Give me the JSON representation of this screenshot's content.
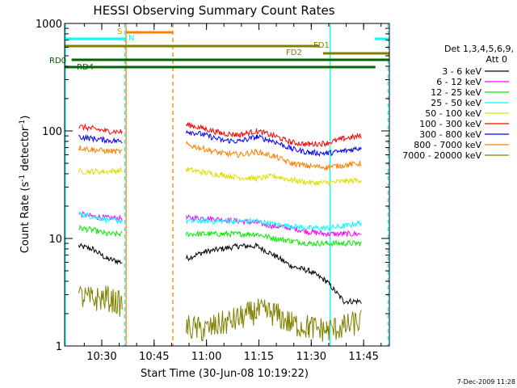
{
  "chart_data": {
    "type": "line",
    "title": "HESSI Observing Summary Count Rates",
    "xlabel": "Start Time (30-Jun-08 10:19:22)",
    "ylabel_main": "Count Rate (s",
    "ylabel_sup1": "-1",
    "ylabel_mid": " detector",
    "ylabel_sup2": "-1",
    "ylabel_end": ")",
    "yscale": "log",
    "ylim": [
      1,
      1000
    ],
    "xlim_minutes": [
      0,
      93
    ],
    "x_ticks": [
      {
        "label": "10:30",
        "t": 10.63
      },
      {
        "label": "10:45",
        "t": 25.63
      },
      {
        "label": "11:00",
        "t": 40.63
      },
      {
        "label": "11:15",
        "t": 55.63
      },
      {
        "label": "11:30",
        "t": 70.63
      },
      {
        "label": "11:45",
        "t": 85.63
      }
    ],
    "y_ticks": [
      {
        "label": "1",
        "v": 1
      },
      {
        "label": "10",
        "v": 10
      },
      {
        "label": "100",
        "v": 100
      },
      {
        "label": "1000",
        "v": 1000
      }
    ],
    "legend_header": [
      "Det 1,3,4,5,6,9,",
      "Att 0"
    ],
    "series": [
      {
        "name": "3 - 6 keV",
        "color": "#000000",
        "t": [
          0,
          4,
          8,
          12,
          16.5,
          34.8,
          40,
          45,
          50,
          55,
          60,
          65,
          70,
          75,
          80,
          85,
          88.5,
          93
        ],
        "v": [
          null,
          8.5,
          8,
          6.5,
          6,
          6.5,
          7.5,
          8,
          8.5,
          8.5,
          7,
          5.5,
          5,
          4,
          2.6,
          2.6,
          null,
          null
        ]
      },
      {
        "name": "6 - 12 keV",
        "color": "#ff00ff",
        "t": [
          0,
          4,
          8,
          12,
          16.5,
          34.8,
          40,
          45,
          50,
          55,
          60,
          65,
          70,
          75,
          80,
          85,
          88.5,
          93
        ],
        "v": [
          null,
          17,
          16,
          15.5,
          15.5,
          15.5,
          15.5,
          15,
          14.5,
          14,
          13,
          12.5,
          11.5,
          11,
          11,
          11,
          null,
          null
        ]
      },
      {
        "name": "12 - 25 keV",
        "color": "#00ee00",
        "t": [
          0,
          4,
          8,
          12,
          16.5,
          34.8,
          40,
          45,
          50,
          55,
          60,
          65,
          70,
          75,
          80,
          85,
          88.5,
          93
        ],
        "v": [
          null,
          12.5,
          12,
          11,
          11,
          11,
          11,
          11,
          11,
          11,
          10,
          9.5,
          9,
          9,
          9,
          9,
          null,
          null
        ]
      },
      {
        "name": "25 - 50 keV",
        "color": "#00ffff",
        "t": [
          0,
          4,
          8,
          12,
          16.5,
          34.8,
          40,
          45,
          50,
          55,
          60,
          65,
          70,
          75,
          80,
          85,
          88.5,
          93
        ],
        "v": [
          null,
          17,
          16,
          15,
          14.5,
          14.5,
          14.5,
          14.5,
          14.5,
          14.5,
          13.5,
          13,
          12.5,
          12.5,
          13,
          14,
          null,
          null
        ]
      },
      {
        "name": "50 - 100 keV",
        "color": "#dddd00",
        "t": [
          0,
          4,
          8,
          12,
          16.5,
          34.8,
          40,
          45,
          50,
          55,
          60,
          65,
          70,
          75,
          80,
          85,
          88.5,
          93
        ],
        "v": [
          null,
          42,
          42,
          42,
          43,
          44,
          41,
          39,
          37,
          36,
          38,
          35,
          33,
          33,
          34,
          35,
          null,
          null
        ]
      },
      {
        "name": "100 - 300 keV",
        "color": "#ff0000",
        "t": [
          0,
          4,
          8,
          12,
          16.5,
          34.8,
          40,
          45,
          50,
          55,
          60,
          65,
          70,
          75,
          80,
          85,
          88.5,
          93
        ],
        "v": [
          null,
          110,
          105,
          100,
          98,
          115,
          105,
          95,
          92,
          100,
          90,
          78,
          75,
          77,
          85,
          90,
          null,
          null
        ]
      },
      {
        "name": "300 - 800 keV",
        "color": "#0000ff",
        "t": [
          0,
          4,
          8,
          12,
          16.5,
          34.8,
          40,
          45,
          50,
          55,
          60,
          65,
          70,
          75,
          80,
          85,
          88.5,
          93
        ],
        "v": [
          null,
          88,
          85,
          82,
          80,
          100,
          92,
          82,
          80,
          88,
          80,
          68,
          63,
          62,
          65,
          70,
          null,
          null
        ]
      },
      {
        "name": "800 - 7000 keV",
        "color": "#ff8000",
        "t": [
          0,
          4,
          8,
          12,
          16.5,
          34.8,
          40,
          45,
          50,
          55,
          60,
          65,
          70,
          75,
          80,
          85,
          88.5,
          93
        ],
        "v": [
          null,
          70,
          67,
          65,
          64,
          75,
          68,
          62,
          60,
          64,
          58,
          50,
          47,
          46,
          48,
          50,
          null,
          null
        ]
      },
      {
        "name": "7000 - 20000 keV",
        "color": "#808000",
        "t": [
          0,
          4,
          8,
          12,
          16.5,
          34.8,
          40,
          45,
          50,
          55,
          60,
          65,
          70,
          75,
          80,
          85,
          88.5,
          93
        ],
        "v": [
          null,
          2.9,
          2.7,
          2.8,
          2.4,
          1.5,
          1.4,
          1.6,
          1.8,
          2.1,
          2.0,
          1.6,
          1.5,
          1.4,
          1.5,
          1.7,
          null,
          null
        ]
      }
    ],
    "flag_bars": [
      {
        "label": "S",
        "color": "#ff8000",
        "start": 17.5,
        "end": 31
      },
      {
        "label": "N",
        "color": "#00ffff",
        "start": 0,
        "end": 17.5
      },
      {
        "label": "N",
        "color": "#00ffff",
        "start": 88.8,
        "end": 93
      },
      {
        "label": "FD1",
        "color": "#808000",
        "start": 0,
        "end": 73
      },
      {
        "label": "FD2",
        "color": "#808000",
        "start": 74,
        "end": 93
      },
      {
        "label": "RD0",
        "color": "#006400",
        "start": 2,
        "end": 93
      },
      {
        "label": "RD4",
        "color": "#006400",
        "start": 0,
        "end": 89
      }
    ],
    "vertical_lines": [
      {
        "t": 0.2,
        "color": "#00ffff",
        "style": "solid"
      },
      {
        "t": 17.6,
        "color": "#ff8000",
        "style": "solid"
      },
      {
        "t": 17.2,
        "color": "#00ffff",
        "style": "dashed"
      },
      {
        "t": 31.0,
        "color": "#ff8000",
        "style": "dashed"
      },
      {
        "t": 76.0,
        "color": "#00ffff",
        "style": "solid"
      },
      {
        "t": 92.6,
        "color": "#00ffff",
        "style": "dashed"
      }
    ],
    "footer_date": "7-Dec-2009 11:28"
  }
}
